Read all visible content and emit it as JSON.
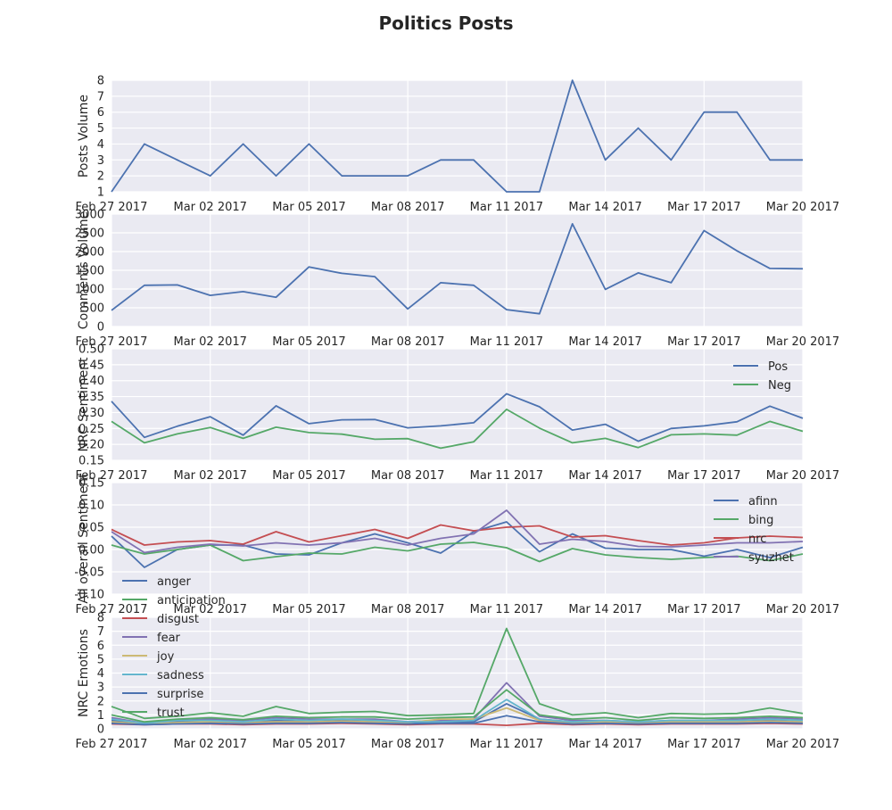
{
  "figure_title": "Politics Posts",
  "colors": {
    "blue": "#4c72b0",
    "green": "#55a868",
    "red": "#c44e52",
    "purple": "#8172b2",
    "yellow": "#ccb974",
    "cyan": "#64b5cd"
  },
  "chart_data": [
    {
      "type": "line",
      "ylabel": "Posts Volume",
      "ylim": [
        1,
        8
      ],
      "yticks": [
        "1",
        "2",
        "3",
        "4",
        "5",
        "6",
        "7",
        "8"
      ],
      "xticks": [
        "Feb 27 2017",
        "Mar 02 2017",
        "Mar 05 2017",
        "Mar 08 2017",
        "Mar 11 2017",
        "Mar 14 2017",
        "Mar 17 2017",
        "Mar 20 2017"
      ],
      "series": [
        {
          "color": "#4c72b0",
          "values": [
            1,
            4,
            3,
            2,
            4,
            2,
            4,
            2,
            2,
            2,
            3,
            3,
            1,
            1,
            8,
            3,
            5,
            3,
            6,
            6,
            3,
            3
          ]
        }
      ]
    },
    {
      "type": "line",
      "ylabel": "Comments Volume",
      "ylim": [
        0,
        3000
      ],
      "yticks": [
        "0",
        "500",
        "1000",
        "1500",
        "2000",
        "2500",
        "3000"
      ],
      "xticks": [
        "Feb 27 2017",
        "Mar 02 2017",
        "Mar 05 2017",
        "Mar 08 2017",
        "Mar 11 2017",
        "Mar 14 2017",
        "Mar 17 2017",
        "Mar 20 2017"
      ],
      "series": [
        {
          "color": "#4c72b0",
          "values": [
            430,
            1100,
            1110,
            830,
            930,
            780,
            1590,
            1420,
            1330,
            470,
            1170,
            1100,
            450,
            340,
            2740,
            990,
            1430,
            1170,
            2560,
            2020,
            1550,
            1540
          ]
        }
      ]
    },
    {
      "type": "line",
      "ylabel": "NRC Sentiment",
      "ylim": [
        0.15,
        0.5
      ],
      "yticks": [
        "0.15",
        "0.20",
        "0.25",
        "0.30",
        "0.35",
        "0.40",
        "0.45",
        "0.50"
      ],
      "xticks": [
        "Feb 27 2017",
        "Mar 02 2017",
        "Mar 05 2017",
        "Mar 08 2017",
        "Mar 11 2017",
        "Mar 14 2017",
        "Mar 17 2017",
        "Mar 20 2017"
      ],
      "legend": "top-right",
      "series": [
        {
          "name": "Pos",
          "color": "#4c72b0",
          "values": [
            0.335,
            0.222,
            0.257,
            0.287,
            0.229,
            0.321,
            0.265,
            0.277,
            0.278,
            0.252,
            0.258,
            0.268,
            0.359,
            0.318,
            0.245,
            0.263,
            0.21,
            0.25,
            0.258,
            0.271,
            0.32,
            0.282
          ]
        },
        {
          "name": "Neg",
          "color": "#55a868",
          "values": [
            0.272,
            0.205,
            0.233,
            0.253,
            0.219,
            0.254,
            0.237,
            0.232,
            0.216,
            0.218,
            0.188,
            0.208,
            0.31,
            0.251,
            0.205,
            0.219,
            0.19,
            0.23,
            0.233,
            0.229,
            0.272,
            0.241
          ]
        }
      ]
    },
    {
      "type": "line",
      "ylabel": "All overall Sentiment",
      "ylim": [
        -0.1,
        0.15
      ],
      "yticks": [
        "-0.10",
        "-0.05",
        "0.00",
        "0.05",
        "0.10",
        "0.15"
      ],
      "xticks": [
        "Feb 27 2017",
        "Mar 02 2017",
        "Mar 05 2017",
        "Mar 08 2017",
        "Mar 11 2017",
        "Mar 14 2017",
        "Mar 17 2017",
        "Mar 20 2017"
      ],
      "legend": "right",
      "series": [
        {
          "name": "afinn",
          "color": "#4c72b0",
          "values": [
            0.03,
            -0.04,
            0.0,
            0.01,
            0.01,
            -0.01,
            -0.012,
            0.015,
            0.035,
            0.015,
            -0.008,
            0.04,
            0.062,
            -0.005,
            0.035,
            0.003,
            0.0,
            0.0,
            -0.015,
            0.0,
            -0.018,
            0.005
          ]
        },
        {
          "name": "bing",
          "color": "#55a868",
          "values": [
            0.01,
            -0.01,
            0.0,
            0.01,
            -0.025,
            -0.016,
            -0.008,
            -0.01,
            0.005,
            -0.003,
            0.012,
            0.016,
            0.004,
            -0.027,
            0.002,
            -0.012,
            -0.018,
            -0.022,
            -0.018,
            -0.015,
            -0.025,
            -0.01
          ]
        },
        {
          "name": "nrc",
          "color": "#c44e52",
          "values": [
            0.045,
            0.01,
            0.017,
            0.02,
            0.012,
            0.04,
            0.017,
            0.031,
            0.045,
            0.025,
            0.055,
            0.042,
            0.05,
            0.053,
            0.028,
            0.031,
            0.02,
            0.01,
            0.015,
            0.026,
            0.03,
            0.027
          ]
        },
        {
          "name": "syuzhet",
          "color": "#8172b2",
          "values": [
            0.04,
            -0.007,
            0.005,
            0.012,
            0.008,
            0.015,
            0.01,
            0.015,
            0.025,
            0.01,
            0.025,
            0.035,
            0.088,
            0.012,
            0.023,
            0.018,
            0.007,
            0.006,
            0.01,
            0.015,
            0.015,
            0.018
          ]
        }
      ]
    },
    {
      "type": "line",
      "ylabel": "NRC Emotions",
      "ylim": [
        0,
        8
      ],
      "yticks": [
        "0",
        "1",
        "2",
        "3",
        "4",
        "5",
        "6",
        "7",
        "8"
      ],
      "xticks": [
        "Feb 27 2017",
        "Mar 02 2017",
        "Mar 05 2017",
        "Mar 08 2017",
        "Mar 11 2017",
        "Mar 14 2017",
        "Mar 17 2017",
        "Mar 20 2017"
      ],
      "legend": "upper-left",
      "series": [
        {
          "name": "anger",
          "color": "#4c72b0",
          "values": [
            0.6,
            0.4,
            0.5,
            0.5,
            0.5,
            0.6,
            0.5,
            0.6,
            0.5,
            0.4,
            0.5,
            0.5,
            1.8,
            0.7,
            0.5,
            0.5,
            0.4,
            0.5,
            0.5,
            0.5,
            0.6,
            0.5
          ]
        },
        {
          "name": "anticipation",
          "color": "#55a868",
          "values": [
            1.6,
            0.75,
            0.9,
            1.15,
            0.9,
            1.6,
            1.1,
            1.2,
            1.25,
            0.95,
            1.0,
            1.1,
            7.2,
            1.8,
            1.0,
            1.15,
            0.8,
            1.1,
            1.05,
            1.1,
            1.5,
            1.1
          ]
        },
        {
          "name": "disgust",
          "color": "#c44e52",
          "values": [
            0.35,
            0.3,
            0.35,
            0.35,
            0.3,
            0.35,
            0.35,
            0.4,
            0.35,
            0.3,
            0.35,
            0.35,
            0.25,
            0.4,
            0.3,
            0.35,
            0.3,
            0.35,
            0.35,
            0.35,
            0.4,
            0.35
          ]
        },
        {
          "name": "fear",
          "color": "#8172b2",
          "values": [
            0.8,
            0.4,
            0.6,
            0.7,
            0.6,
            0.8,
            0.7,
            0.7,
            0.7,
            0.5,
            0.6,
            0.7,
            3.3,
            0.9,
            0.6,
            0.6,
            0.5,
            0.6,
            0.6,
            0.7,
            0.8,
            0.7
          ]
        },
        {
          "name": "joy",
          "color": "#ccb974",
          "values": [
            0.5,
            0.35,
            0.45,
            0.5,
            0.45,
            0.5,
            0.5,
            0.55,
            0.5,
            0.45,
            0.7,
            0.7,
            1.5,
            0.6,
            0.45,
            0.5,
            0.4,
            0.5,
            0.5,
            0.5,
            0.55,
            0.5
          ]
        },
        {
          "name": "sadness",
          "color": "#64b5cd",
          "values": [
            0.7,
            0.4,
            0.6,
            0.6,
            0.5,
            0.7,
            0.6,
            0.7,
            0.6,
            0.5,
            0.5,
            0.6,
            2.1,
            0.7,
            0.5,
            0.6,
            0.5,
            0.6,
            0.6,
            0.6,
            0.7,
            0.6
          ]
        },
        {
          "name": "surprise",
          "color": "#4c72b0",
          "values": [
            0.4,
            0.3,
            0.35,
            0.4,
            0.35,
            0.4,
            0.4,
            0.45,
            0.4,
            0.35,
            0.4,
            0.4,
            0.95,
            0.5,
            0.35,
            0.4,
            0.35,
            0.4,
            0.4,
            0.4,
            0.45,
            0.4
          ]
        },
        {
          "name": "trust",
          "color": "#55a868",
          "values": [
            1.0,
            0.5,
            0.7,
            0.8,
            0.65,
            0.9,
            0.8,
            0.85,
            0.85,
            0.7,
            0.8,
            0.85,
            2.8,
            1.0,
            0.7,
            0.8,
            0.6,
            0.8,
            0.75,
            0.8,
            0.9,
            0.8
          ]
        }
      ]
    }
  ]
}
